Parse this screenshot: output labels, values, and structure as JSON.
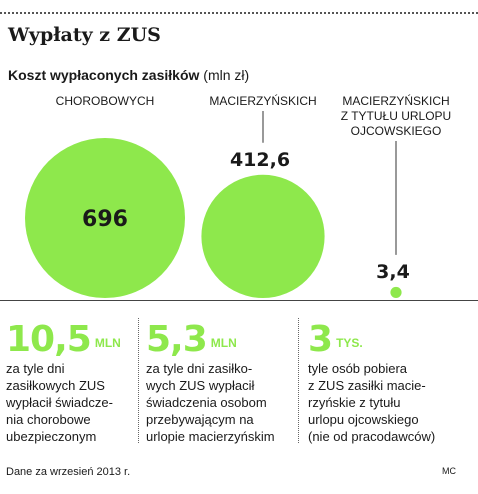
{
  "title": "Wypłaty z ZUS",
  "subtitle": "Koszt wypłaconych zasiłków",
  "subtitle_unit": "(mln zł)",
  "chart_data": {
    "type": "bubble",
    "unit": "mln zł",
    "categories": [
      "CHOROBOWYCH",
      "MACIERZYŃSKICH",
      "MACIERZYŃSKICH Z TYTUŁU URLOPU OJCOWSKIEGO"
    ],
    "values": [
      696,
      412.6,
      3.4
    ],
    "value_labels": [
      "696",
      "412,6",
      "3,4"
    ],
    "category_label_lines": [
      [
        "CHOROBOWYCH"
      ],
      [
        "MACIERZYŃSKICH"
      ],
      [
        "MACIERZYŃSKICH",
        "Z TYTUŁU URLOPU",
        "OJCOWSKIEGO"
      ]
    ],
    "color": "#8ee84c"
  },
  "stats": [
    {
      "number": "10,5",
      "unit": "MLN",
      "desc": "za tyle dni\nzasiłkowych ZUS\nwypłacił świadcze-\nnia chorobowe\nubezpieczonym"
    },
    {
      "number": "5,3",
      "unit": "MLN",
      "desc": "za tyle dni zasiłko-\nwych ZUS wypłacił\nświadczenia osobom\nprzebywającym na\nurlopie macierzyńskim"
    },
    {
      "number": "3",
      "unit": "TYS.",
      "desc": "tyle osób pobiera\nz ZUS zasiłki macie-\nrzyńskie z tytułu\nurlopu ojcowskiego\n(nie od pracodawców)"
    }
  ],
  "footer": {
    "source": "Dane za wrzesień 2013 r.",
    "credit": "MC"
  }
}
